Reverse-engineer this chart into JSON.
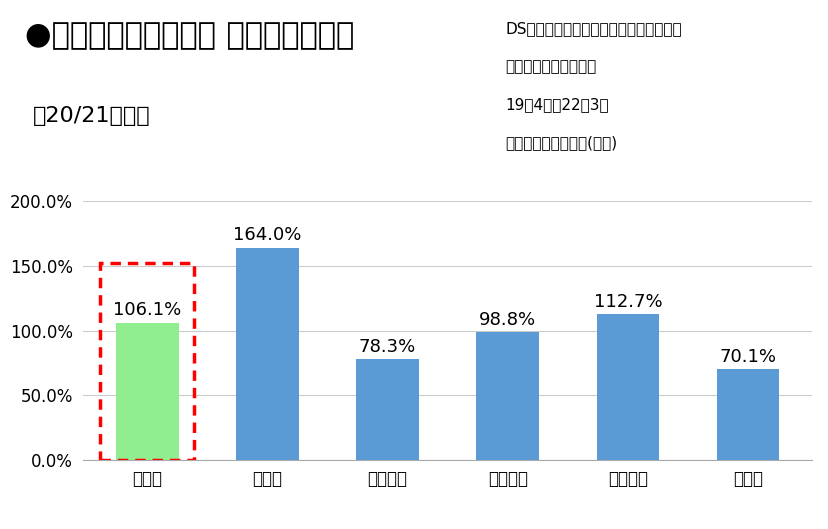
{
  "categories": [
    "無香計",
    "置き型",
    "クリップ",
    "シート下",
    "スプレー",
    "その他"
  ],
  "values": [
    106.1,
    164.0,
    78.3,
    98.8,
    112.7,
    70.1
  ],
  "bar_colors": [
    "#90EE90",
    "#5B9BD5",
    "#5B9BD5",
    "#5B9BD5",
    "#5B9BD5",
    "#5B9BD5"
  ],
  "title": "●クルマ用無香タイプ マーケット状況",
  "subtitle": "　20/21年比、",
  "ds_line1": "DS：　（株）インテージ　　ＳＲＩ＋Ｍ",
  "ds_line2": "カールート消臭芳香劑",
  "ds_line3": "19年4月～22年3月",
  "ds_line4": "指標：推計販売規模(金額)",
  "ylim": [
    0,
    200
  ],
  "yticks": [
    0,
    50,
    100,
    150,
    200
  ],
  "ytick_labels": [
    "0.0%",
    "50.0%",
    "100.0%",
    "150.0%",
    "200.0%"
  ],
  "dashed_rect_color": "#FF0000",
  "background_color": "#FFFFFF",
  "title_fontsize": 22,
  "subtitle_fontsize": 16,
  "bar_label_fontsize": 13,
  "tick_fontsize": 12,
  "ds_fontsize": 11
}
